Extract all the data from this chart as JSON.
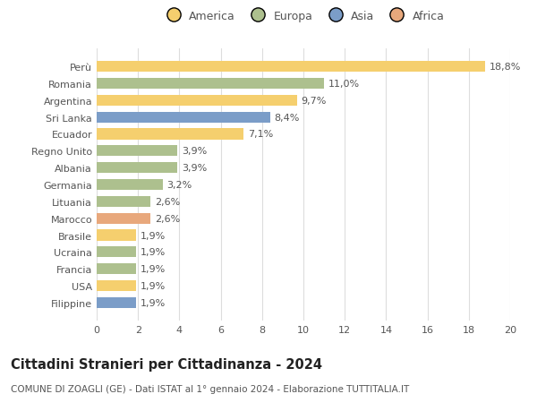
{
  "categories": [
    "Filippine",
    "USA",
    "Francia",
    "Ucraina",
    "Brasile",
    "Marocco",
    "Lituania",
    "Germania",
    "Albania",
    "Regno Unito",
    "Ecuador",
    "Sri Lanka",
    "Argentina",
    "Romania",
    "Perù"
  ],
  "values": [
    1.9,
    1.9,
    1.9,
    1.9,
    1.9,
    2.6,
    2.6,
    3.2,
    3.9,
    3.9,
    7.1,
    8.4,
    9.7,
    11.0,
    18.8
  ],
  "colors": [
    "#7b9dc8",
    "#f5cf6e",
    "#adc08e",
    "#adc08e",
    "#f5cf6e",
    "#e8a87c",
    "#adc08e",
    "#adc08e",
    "#adc08e",
    "#adc08e",
    "#f5cf6e",
    "#7b9dc8",
    "#f5cf6e",
    "#adc08e",
    "#f5cf6e"
  ],
  "labels": [
    "1,9%",
    "1,9%",
    "1,9%",
    "1,9%",
    "1,9%",
    "2,6%",
    "2,6%",
    "3,2%",
    "3,9%",
    "3,9%",
    "7,1%",
    "8,4%",
    "9,7%",
    "11,0%",
    "18,8%"
  ],
  "title": "Cittadini Stranieri per Cittadinanza - 2024",
  "subtitle": "COMUNE DI ZOAGLI (GE) - Dati ISTAT al 1° gennaio 2024 - Elaborazione TUTTITALIA.IT",
  "xlim": [
    0,
    20
  ],
  "xticks": [
    0,
    2,
    4,
    6,
    8,
    10,
    12,
    14,
    16,
    18,
    20
  ],
  "legend_entries": [
    "America",
    "Europa",
    "Asia",
    "Africa"
  ],
  "legend_colors": [
    "#f5cf6e",
    "#adc08e",
    "#7b9dc8",
    "#e8a87c"
  ],
  "background_color": "#ffffff",
  "grid_color": "#dddddd",
  "bar_height": 0.65,
  "label_fontsize": 8,
  "title_fontsize": 10.5,
  "subtitle_fontsize": 7.5,
  "tick_fontsize": 8,
  "legend_fontsize": 9
}
